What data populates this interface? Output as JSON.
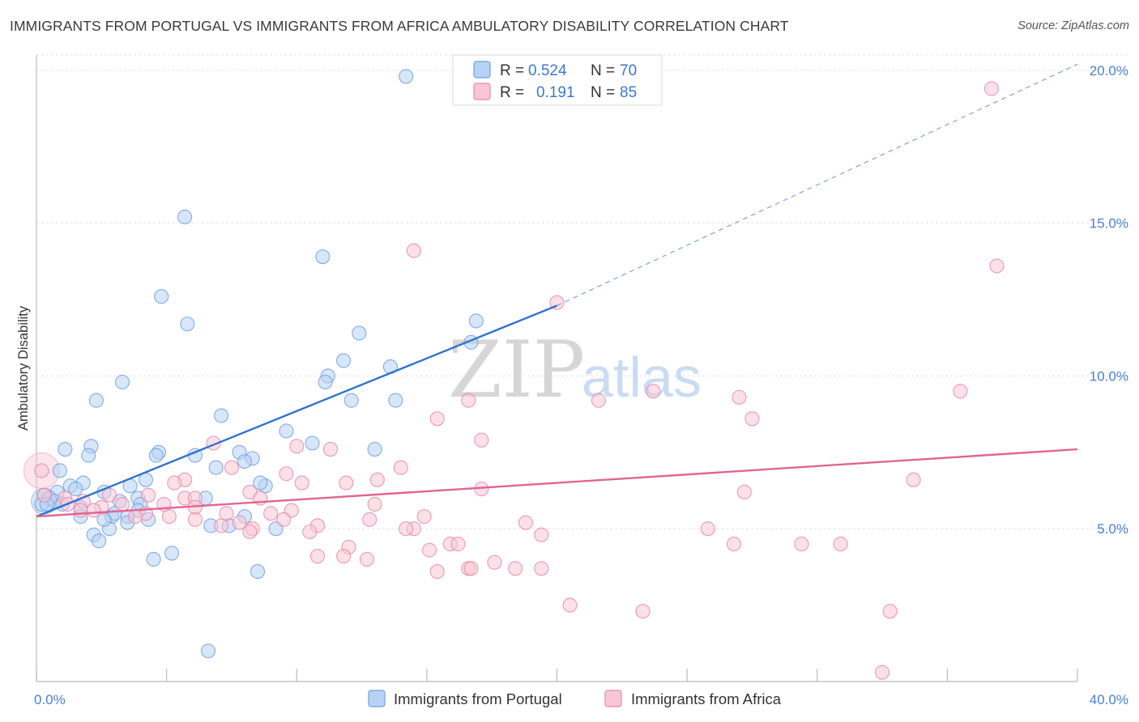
{
  "title": "IMMIGRANTS FROM PORTUGAL VS IMMIGRANTS FROM AFRICA AMBULATORY DISABILITY CORRELATION CHART",
  "source": "Source: ZipAtlas.com",
  "watermark": {
    "part1": "ZIP",
    "part2": "atlas"
  },
  "legend": {
    "rows": [
      {
        "r_label": "R =",
        "r_value": "0.524",
        "n_label": "N =",
        "n_value": "70",
        "color": "#b7d2f4",
        "stroke": "#6fa0e0"
      },
      {
        "r_label": "R =",
        "r_value": "0.191",
        "n_label": "N =",
        "n_value": "85",
        "color": "#f9c6d6",
        "stroke": "#e58aa8"
      }
    ]
  },
  "chart_data": {
    "type": "scatter",
    "title": "IMMIGRANTS FROM PORTUGAL VS IMMIGRANTS FROM AFRICA AMBULATORY DISABILITY CORRELATION CHART",
    "xlabel": "",
    "ylabel": "Ambulatory Disability",
    "xlim": [
      0,
      40
    ],
    "ylim": [
      0,
      20.5
    ],
    "x_tick_labels": [
      "0.0%",
      "40.0%"
    ],
    "y_ticks": [
      {
        "value": 5,
        "label": "5.0%"
      },
      {
        "value": 10,
        "label": "10.0%"
      },
      {
        "value": 15,
        "label": "15.0%"
      },
      {
        "value": 20,
        "label": "20.0%"
      }
    ],
    "grid": true,
    "legend_position": "top-center",
    "series": [
      {
        "name": "Immigrants from Portugal",
        "color": "#6fa0e0",
        "fill": "#b7d2f4",
        "trend": {
          "x": [
            0,
            20
          ],
          "y": [
            5.4,
            12.3
          ],
          "extended_to": [
            40,
            20.2
          ],
          "color": "#2f72cf"
        },
        "points": [
          [
            14.2,
            19.8
          ],
          [
            5.7,
            15.2
          ],
          [
            11.0,
            13.9
          ],
          [
            4.8,
            12.6
          ],
          [
            5.8,
            11.7
          ],
          [
            16.9,
            11.8
          ],
          [
            12.4,
            11.4
          ],
          [
            16.7,
            11.1
          ],
          [
            11.8,
            10.5
          ],
          [
            13.6,
            10.3
          ],
          [
            11.2,
            10.0
          ],
          [
            11.1,
            9.8
          ],
          [
            3.3,
            9.8
          ],
          [
            2.3,
            9.2
          ],
          [
            13.8,
            9.2
          ],
          [
            12.1,
            9.2
          ],
          [
            7.1,
            8.7
          ],
          [
            9.6,
            8.2
          ],
          [
            1.1,
            7.6
          ],
          [
            2.1,
            7.7
          ],
          [
            4.7,
            7.5
          ],
          [
            4.6,
            7.4
          ],
          [
            2.0,
            7.4
          ],
          [
            6.1,
            7.4
          ],
          [
            7.8,
            7.5
          ],
          [
            10.6,
            7.8
          ],
          [
            13.0,
            7.6
          ],
          [
            8.3,
            7.3
          ],
          [
            8.0,
            7.2
          ],
          [
            0.9,
            6.9
          ],
          [
            6.9,
            7.0
          ],
          [
            4.2,
            6.6
          ],
          [
            1.8,
            6.5
          ],
          [
            1.3,
            6.4
          ],
          [
            3.6,
            6.4
          ],
          [
            1.5,
            6.3
          ],
          [
            0.8,
            6.2
          ],
          [
            0.3,
            6.1
          ],
          [
            2.6,
            6.2
          ],
          [
            0.5,
            6.0
          ],
          [
            0.2,
            5.8
          ],
          [
            0.7,
            5.9
          ],
          [
            1.0,
            5.8
          ],
          [
            6.5,
            6.0
          ],
          [
            3.9,
            6.0
          ],
          [
            3.2,
            5.9
          ],
          [
            4.0,
            5.8
          ],
          [
            8.8,
            6.4
          ],
          [
            8.6,
            6.5
          ],
          [
            1.7,
            5.7
          ],
          [
            3.9,
            5.6
          ],
          [
            3.5,
            5.4
          ],
          [
            2.9,
            5.4
          ],
          [
            3.0,
            5.5
          ],
          [
            1.7,
            5.4
          ],
          [
            4.3,
            5.3
          ],
          [
            8.0,
            5.4
          ],
          [
            3.5,
            5.2
          ],
          [
            6.7,
            5.1
          ],
          [
            7.4,
            5.1
          ],
          [
            9.2,
            5.0
          ],
          [
            2.8,
            5.0
          ],
          [
            2.2,
            4.8
          ],
          [
            2.4,
            4.6
          ],
          [
            5.2,
            4.2
          ],
          [
            4.5,
            4.0
          ],
          [
            8.5,
            3.6
          ],
          [
            6.6,
            1.0
          ],
          [
            0.4,
            5.8
          ],
          [
            2.6,
            5.3
          ]
        ]
      },
      {
        "name": "Immigrants from Africa",
        "color": "#e58aa8",
        "fill": "#f9c6d6",
        "trend": {
          "x": [
            0,
            40
          ],
          "y": [
            5.4,
            7.6
          ],
          "color": "#e3648e"
        },
        "points": [
          [
            36.7,
            19.4
          ],
          [
            14.5,
            14.1
          ],
          [
            36.9,
            13.6
          ],
          [
            20.0,
            12.4
          ],
          [
            23.7,
            9.5
          ],
          [
            27.0,
            9.3
          ],
          [
            35.5,
            9.5
          ],
          [
            21.6,
            9.2
          ],
          [
            16.6,
            9.2
          ],
          [
            15.4,
            8.6
          ],
          [
            27.5,
            8.6
          ],
          [
            17.1,
            7.9
          ],
          [
            6.8,
            7.8
          ],
          [
            10.0,
            7.7
          ],
          [
            11.3,
            7.6
          ],
          [
            14.0,
            7.0
          ],
          [
            7.5,
            7.0
          ],
          [
            9.6,
            6.8
          ],
          [
            13.1,
            6.6
          ],
          [
            5.7,
            6.6
          ],
          [
            33.7,
            6.6
          ],
          [
            5.3,
            6.5
          ],
          [
            10.2,
            6.5
          ],
          [
            11.9,
            6.5
          ],
          [
            17.1,
            6.3
          ],
          [
            27.2,
            6.2
          ],
          [
            8.2,
            6.2
          ],
          [
            4.3,
            6.1
          ],
          [
            5.7,
            6.0
          ],
          [
            6.1,
            6.0
          ],
          [
            1.1,
            6.0
          ],
          [
            2.8,
            6.1
          ],
          [
            8.6,
            6.0
          ],
          [
            1.8,
            5.9
          ],
          [
            1.2,
            5.8
          ],
          [
            3.3,
            5.8
          ],
          [
            4.9,
            5.8
          ],
          [
            13.0,
            5.8
          ],
          [
            6.1,
            5.7
          ],
          [
            2.5,
            5.7
          ],
          [
            2.2,
            5.6
          ],
          [
            1.7,
            5.6
          ],
          [
            4.2,
            5.5
          ],
          [
            9.8,
            5.6
          ],
          [
            7.3,
            5.5
          ],
          [
            9.0,
            5.5
          ],
          [
            5.1,
            5.4
          ],
          [
            3.8,
            5.4
          ],
          [
            14.9,
            5.4
          ],
          [
            6.1,
            5.3
          ],
          [
            12.8,
            5.3
          ],
          [
            9.5,
            5.3
          ],
          [
            7.8,
            5.2
          ],
          [
            10.8,
            5.1
          ],
          [
            18.8,
            5.2
          ],
          [
            14.5,
            5.0
          ],
          [
            14.2,
            5.0
          ],
          [
            7.1,
            5.1
          ],
          [
            8.3,
            5.0
          ],
          [
            8.2,
            4.9
          ],
          [
            25.8,
            5.0
          ],
          [
            10.5,
            4.9
          ],
          [
            19.4,
            4.8
          ],
          [
            15.9,
            4.5
          ],
          [
            16.2,
            4.5
          ],
          [
            12.0,
            4.4
          ],
          [
            26.8,
            4.5
          ],
          [
            29.4,
            4.5
          ],
          [
            30.9,
            4.5
          ],
          [
            15.1,
            4.3
          ],
          [
            11.8,
            4.1
          ],
          [
            10.8,
            4.1
          ],
          [
            12.7,
            4.0
          ],
          [
            17.6,
            3.9
          ],
          [
            18.4,
            3.7
          ],
          [
            16.6,
            3.7
          ],
          [
            16.7,
            3.7
          ],
          [
            19.4,
            3.7
          ],
          [
            15.4,
            3.6
          ],
          [
            20.5,
            2.5
          ],
          [
            23.3,
            2.3
          ],
          [
            32.8,
            2.3
          ],
          [
            32.5,
            0.3
          ],
          [
            0.2,
            6.9
          ],
          [
            0.3,
            6.1
          ]
        ]
      }
    ]
  }
}
